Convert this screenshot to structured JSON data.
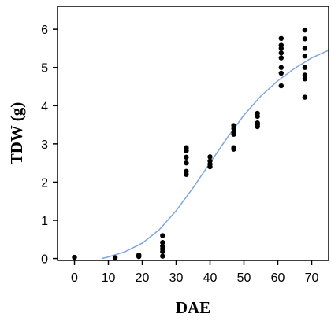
{
  "chart_data": {
    "type": "scatter",
    "title": "",
    "xlabel": "DAE",
    "ylabel": "TDW (g)",
    "xlim": [
      -5,
      75
    ],
    "ylim": [
      -0.05,
      6.6
    ],
    "xticks": [
      0,
      10,
      20,
      30,
      40,
      50,
      60,
      70
    ],
    "yticks": [
      0,
      1,
      2,
      3,
      4,
      5,
      6
    ],
    "grid": false,
    "legend": "none",
    "colors": {
      "points": "#000000",
      "fit_line": "#7ea6e0",
      "axes": "#000000"
    },
    "series": [
      {
        "type": "scatter",
        "points": [
          [
            0,
            0.03
          ],
          [
            12,
            0.02
          ],
          [
            19,
            0.05
          ],
          [
            19,
            0.07
          ],
          [
            19,
            0.09
          ],
          [
            26,
            0.06
          ],
          [
            26,
            0.18
          ],
          [
            26,
            0.25
          ],
          [
            26,
            0.32
          ],
          [
            26,
            0.42
          ],
          [
            26,
            0.6
          ],
          [
            33,
            2.2
          ],
          [
            33,
            2.28
          ],
          [
            33,
            2.5
          ],
          [
            33,
            2.65
          ],
          [
            33,
            2.82
          ],
          [
            33,
            2.9
          ],
          [
            40,
            2.4
          ],
          [
            40,
            2.47
          ],
          [
            40,
            2.55
          ],
          [
            40,
            2.66
          ],
          [
            47,
            2.86
          ],
          [
            47,
            2.9
          ],
          [
            47,
            3.25
          ],
          [
            47,
            3.3
          ],
          [
            47,
            3.4
          ],
          [
            47,
            3.48
          ],
          [
            54,
            3.45
          ],
          [
            54,
            3.5
          ],
          [
            54,
            3.55
          ],
          [
            54,
            3.72
          ],
          [
            54,
            3.8
          ],
          [
            61,
            4.52
          ],
          [
            61,
            4.85
          ],
          [
            61,
            5.0
          ],
          [
            61,
            5.25
          ],
          [
            61,
            5.38
          ],
          [
            61,
            5.5
          ],
          [
            61,
            5.58
          ],
          [
            61,
            5.76
          ],
          [
            68,
            4.22
          ],
          [
            68,
            4.7
          ],
          [
            68,
            4.8
          ],
          [
            68,
            5.0
          ],
          [
            68,
            5.3
          ],
          [
            68,
            5.5
          ],
          [
            68,
            5.75
          ],
          [
            68,
            5.98
          ]
        ]
      },
      {
        "type": "line",
        "x": [
          8,
          10,
          15,
          20,
          25,
          30,
          35,
          40,
          45,
          50,
          55,
          60,
          65,
          70,
          75
        ],
        "y": [
          0.0,
          0.04,
          0.18,
          0.4,
          0.75,
          1.25,
          1.85,
          2.5,
          3.15,
          3.75,
          4.25,
          4.65,
          4.98,
          5.25,
          5.45
        ]
      }
    ]
  }
}
